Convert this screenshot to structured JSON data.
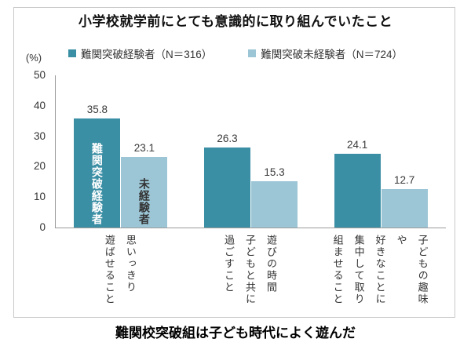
{
  "caption": "難関校突破組は子ども時代によく遊んだ",
  "chart_data": {
    "type": "bar",
    "title": "小学校就学前にとても意識的に取り組んでいたこと",
    "categories": [
      "思いっきり\n遊ばせること",
      "遊びの時間\n子どもと共に\n過ごすこと",
      "子どもの趣味や\n好きなことに\n集中して取り\n組ませること"
    ],
    "series": [
      {
        "name": "難関突破経験者（N＝316）",
        "values": [
          35.8,
          26.3,
          24.1
        ],
        "color": "#3B8FA5",
        "bar_annotation": "難関突破経験者",
        "annotation_color": "#FFFFFF"
      },
      {
        "name": "難関突破未経験者（N＝724）",
        "values": [
          23.1,
          15.3,
          12.7
        ],
        "color": "#9CC6D6",
        "bar_annotation": "未経験者",
        "annotation_color": "#333333"
      }
    ],
    "ylabel": "(%)",
    "ylim": [
      0,
      50
    ],
    "y_ticks": [
      50,
      40,
      30,
      20,
      10,
      0
    ],
    "grid": false,
    "legend_position": "top",
    "value_labels": true
  }
}
